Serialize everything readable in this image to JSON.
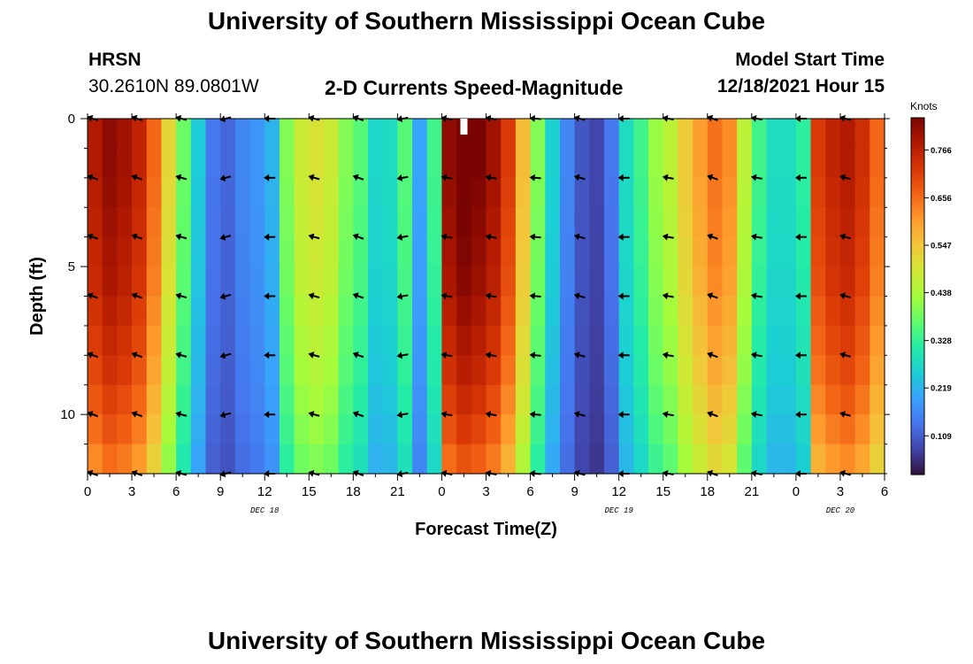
{
  "header": {
    "title": "University of Southern Mississippi Ocean Cube",
    "station": "HRSN",
    "coords": "30.2610N  89.0801W",
    "subtitle": "2-D Currents Speed-Magnitude",
    "model_label": "Model Start Time",
    "model_time": "12/18/2021 Hour 15"
  },
  "footer": {
    "title": "University of Southern Mississippi Ocean Cube"
  },
  "colors": {
    "ramp": [
      "#30123b",
      "#4145ab",
      "#4675ed",
      "#39a2fc",
      "#1bcfd4",
      "#24eca6",
      "#61fc6c",
      "#a4fc3b",
      "#d1e834",
      "#f3c63a",
      "#fe9b2d",
      "#f36315",
      "#d93806",
      "#b11901",
      "#7a0402"
    ],
    "arrow": "#000000"
  },
  "chart_data": {
    "type": "heatmap",
    "title": "2-D Currents Speed-Magnitude",
    "xlabel": "Forecast Time(Z)",
    "ylabel": "Depth (ft)",
    "x_ticks": [
      "0",
      "3",
      "6",
      "9",
      "12",
      "15",
      "18",
      "21",
      "0",
      "3",
      "6",
      "9",
      "12",
      "15",
      "18",
      "21",
      "0",
      "3",
      "6"
    ],
    "x_hours_range": [
      0,
      54
    ],
    "date_labels": [
      {
        "text": "DEC 18",
        "hour": 12
      },
      {
        "text": "DEC 19",
        "hour": 36
      },
      {
        "text": "DEC 20",
        "hour": 51
      }
    ],
    "y_ticks": [
      "0",
      "5",
      "10"
    ],
    "y_range": [
      0,
      12
    ],
    "colorbar": {
      "label": "Knots",
      "ticks": [
        "0.766",
        "0.656",
        "0.547",
        "0.438",
        "0.328",
        "0.219",
        "0.109"
      ],
      "range": [
        0.02,
        0.84
      ]
    },
    "speed_by_hour": [
      0.78,
      0.82,
      0.8,
      0.76,
      0.66,
      0.52,
      0.38,
      0.25,
      0.14,
      0.12,
      0.16,
      0.18,
      0.22,
      0.4,
      0.48,
      0.5,
      0.48,
      0.4,
      0.36,
      0.27,
      0.28,
      0.36,
      0.2,
      0.34,
      0.82,
      0.86,
      0.84,
      0.8,
      0.72,
      0.56,
      0.4,
      0.26,
      0.16,
      0.1,
      0.08,
      0.14,
      0.28,
      0.34,
      0.42,
      0.46,
      0.54,
      0.6,
      0.65,
      0.62,
      0.46,
      0.34,
      0.28,
      0.28,
      0.32,
      0.72,
      0.76,
      0.78,
      0.74,
      0.66
    ],
    "depth_factor": [
      1.0,
      1.0,
      0.99,
      0.98,
      0.97,
      0.96,
      0.94,
      0.92,
      0.9,
      0.87,
      0.84,
      0.8
    ],
    "arrow_times": [
      0,
      3,
      6,
      9,
      12,
      15,
      18,
      21,
      24,
      27,
      30,
      33,
      36,
      39,
      42,
      45,
      48,
      51
    ],
    "arrow_depths": [
      0,
      2,
      4,
      6,
      8,
      10,
      12
    ],
    "arrow_dirs_deg": [
      200,
      200,
      195,
      165,
      180,
      195,
      200,
      170,
      190,
      190,
      185,
      195,
      180,
      190,
      200,
      190,
      180,
      195
    ]
  }
}
